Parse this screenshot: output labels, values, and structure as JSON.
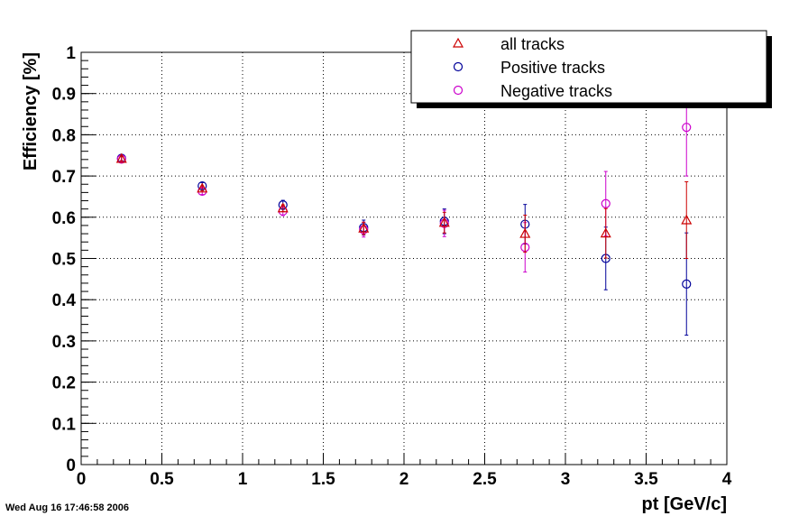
{
  "timestamp": "Wed Aug 16 17:46:58 2006",
  "chart_data": {
    "type": "scatter",
    "title": "",
    "xlabel": "pt [GeV/c]",
    "ylabel": "Efficiency [%]",
    "xlim": [
      0,
      4
    ],
    "ylim": [
      0,
      1
    ],
    "x_ticks": [
      "0",
      "0.5",
      "1",
      "1.5",
      "2",
      "2.5",
      "3",
      "3.5",
      "4"
    ],
    "y_ticks": [
      "0",
      "0.1",
      "0.2",
      "0.3",
      "0.4",
      "0.5",
      "0.6",
      "0.7",
      "0.8",
      "0.9",
      "1"
    ],
    "grid": true,
    "legend_position": "top-right",
    "series": [
      {
        "name": "all tracks",
        "marker": "triangle",
        "color": "#cc0000",
        "points": [
          {
            "x": 0.25,
            "y": 0.742,
            "err": 0.005
          },
          {
            "x": 0.75,
            "y": 0.67,
            "err": 0.006
          },
          {
            "x": 1.25,
            "y": 0.622,
            "err": 0.008
          },
          {
            "x": 1.75,
            "y": 0.573,
            "err": 0.015
          },
          {
            "x": 2.25,
            "y": 0.587,
            "err": 0.025
          },
          {
            "x": 2.75,
            "y": 0.56,
            "err": 0.045
          },
          {
            "x": 3.25,
            "y": 0.561,
            "err": 0.06
          },
          {
            "x": 3.75,
            "y": 0.593,
            "err": 0.093
          }
        ]
      },
      {
        "name": "Positive tracks",
        "marker": "circle",
        "color": "#000099",
        "points": [
          {
            "x": 0.25,
            "y": 0.743,
            "err": 0.006
          },
          {
            "x": 0.75,
            "y": 0.676,
            "err": 0.008
          },
          {
            "x": 1.25,
            "y": 0.63,
            "err": 0.011
          },
          {
            "x": 1.75,
            "y": 0.575,
            "err": 0.018
          },
          {
            "x": 2.25,
            "y": 0.59,
            "err": 0.03
          },
          {
            "x": 2.75,
            "y": 0.583,
            "err": 0.048
          },
          {
            "x": 3.25,
            "y": 0.5,
            "err": 0.076
          },
          {
            "x": 3.75,
            "y": 0.438,
            "err": 0.124
          }
        ]
      },
      {
        "name": "Negative tracks",
        "marker": "circle",
        "color": "#cc00cc",
        "points": [
          {
            "x": 0.25,
            "y": 0.741,
            "err": 0.006
          },
          {
            "x": 0.75,
            "y": 0.663,
            "err": 0.008
          },
          {
            "x": 1.25,
            "y": 0.615,
            "err": 0.011
          },
          {
            "x": 1.75,
            "y": 0.57,
            "err": 0.018
          },
          {
            "x": 2.25,
            "y": 0.585,
            "err": 0.032
          },
          {
            "x": 2.75,
            "y": 0.527,
            "err": 0.06
          },
          {
            "x": 3.25,
            "y": 0.633,
            "err": 0.078
          },
          {
            "x": 3.75,
            "y": 0.818,
            "err": 0.118
          }
        ]
      }
    ]
  }
}
